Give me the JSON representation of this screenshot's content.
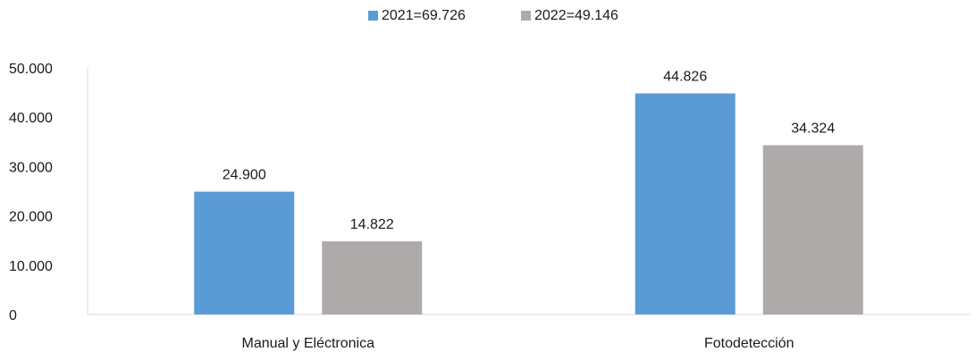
{
  "chart_data": {
    "type": "bar",
    "title": "",
    "xlabel": "",
    "ylabel": "",
    "categories": [
      "Manual y Eléctronica",
      "Fotodetección"
    ],
    "series": [
      {
        "name": "2021=69.726",
        "color": "#5b9bd5",
        "values": [
          24900,
          44826
        ],
        "labels": [
          "24.900",
          "44.826"
        ]
      },
      {
        "name": "2022=49.146",
        "color": "#aeaaaa",
        "values": [
          14822,
          34324
        ],
        "labels": [
          "14.822",
          "34.324"
        ]
      }
    ],
    "ylim": [
      0,
      50000
    ],
    "yticks": [
      0,
      10000,
      20000,
      30000,
      40000,
      50000
    ],
    "ytick_labels": [
      "0",
      "10.000",
      "20.000",
      "30.000",
      "40.000",
      "50.000"
    ],
    "grid": false,
    "legend_position": "top-center"
  }
}
